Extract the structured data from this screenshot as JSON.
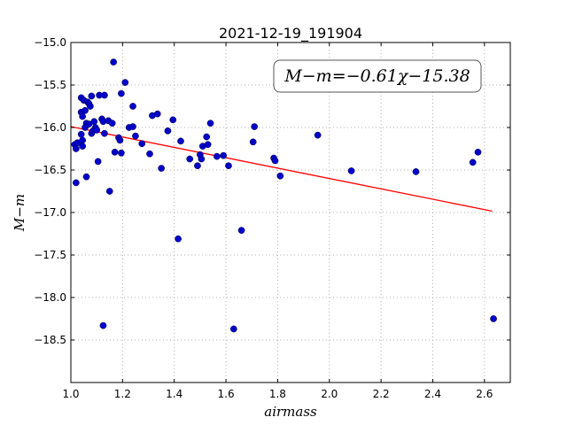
{
  "chart_data": {
    "type": "scatter",
    "title": "2021-12-19_191904",
    "xlabel": "airmass",
    "ylabel": "M−m",
    "xlim": [
      1.0,
      2.7
    ],
    "ylim": [
      -15.0,
      -19.0
    ],
    "y_inverted": true,
    "xticks": [
      "1.0",
      "1.2",
      "1.4",
      "1.6",
      "1.8",
      "2.0",
      "2.2",
      "2.4",
      "2.6"
    ],
    "yticks": [
      "−15.0",
      "−15.5",
      "−16.0",
      "−16.5",
      "−17.0",
      "−17.5",
      "−18.0",
      "−18.5"
    ],
    "grid": true,
    "annotation": "M−m=−0.61χ−15.38",
    "colors": {
      "points": "#0000cc",
      "fit_line": "#ff0000",
      "grid": "#b0b0b0"
    },
    "fit": {
      "slope": -0.61,
      "intercept": -15.38,
      "x_range": [
        1.0,
        2.63
      ]
    },
    "points": [
      [
        1.015,
        -16.2
      ],
      [
        1.02,
        -16.25
      ],
      [
        1.025,
        -16.18
      ],
      [
        1.02,
        -16.65
      ],
      [
        1.04,
        -15.65
      ],
      [
        1.04,
        -15.82
      ],
      [
        1.045,
        -15.87
      ],
      [
        1.04,
        -16.08
      ],
      [
        1.045,
        -16.15
      ],
      [
        1.045,
        -16.22
      ],
      [
        1.05,
        -15.68
      ],
      [
        1.055,
        -15.8
      ],
      [
        1.06,
        -15.95
      ],
      [
        1.055,
        -16.0
      ],
      [
        1.06,
        -16.58
      ],
      [
        1.065,
        -15.7
      ],
      [
        1.07,
        -15.72
      ],
      [
        1.075,
        -15.75
      ],
      [
        1.07,
        -15.96
      ],
      [
        1.08,
        -15.63
      ],
      [
        1.08,
        -16.07
      ],
      [
        1.085,
        -16.04
      ],
      [
        1.09,
        -15.93
      ],
      [
        1.095,
        -16.0
      ],
      [
        1.1,
        -16.03
      ],
      [
        1.105,
        -16.4
      ],
      [
        1.11,
        -15.62
      ],
      [
        1.12,
        -15.9
      ],
      [
        1.125,
        -15.93
      ],
      [
        1.13,
        -15.62
      ],
      [
        1.13,
        -16.07
      ],
      [
        1.125,
        -18.33
      ],
      [
        1.145,
        -15.92
      ],
      [
        1.15,
        -16.75
      ],
      [
        1.16,
        -15.95
      ],
      [
        1.165,
        -15.23
      ],
      [
        1.17,
        -16.29
      ],
      [
        1.185,
        -16.12
      ],
      [
        1.19,
        -16.15
      ],
      [
        1.195,
        -16.3
      ],
      [
        1.195,
        -15.6
      ],
      [
        1.21,
        -15.47
      ],
      [
        1.225,
        -16.0
      ],
      [
        1.24,
        -15.75
      ],
      [
        1.24,
        -15.99
      ],
      [
        1.25,
        -16.1
      ],
      [
        1.275,
        -16.19
      ],
      [
        1.305,
        -16.31
      ],
      [
        1.315,
        -15.86
      ],
      [
        1.335,
        -15.84
      ],
      [
        1.35,
        -16.48
      ],
      [
        1.375,
        -16.04
      ],
      [
        1.395,
        -15.91
      ],
      [
        1.415,
        -17.31
      ],
      [
        1.425,
        -16.16
      ],
      [
        1.46,
        -16.37
      ],
      [
        1.49,
        -16.45
      ],
      [
        1.5,
        -16.32
      ],
      [
        1.505,
        -16.37
      ],
      [
        1.51,
        -16.22
      ],
      [
        1.525,
        -16.11
      ],
      [
        1.53,
        -16.2
      ],
      [
        1.54,
        -15.95
      ],
      [
        1.565,
        -16.34
      ],
      [
        1.59,
        -16.33
      ],
      [
        1.61,
        -16.45
      ],
      [
        1.63,
        -18.37
      ],
      [
        1.66,
        -17.21
      ],
      [
        1.705,
        -16.17
      ],
      [
        1.71,
        -15.99
      ],
      [
        1.785,
        -16.36
      ],
      [
        1.79,
        -16.39
      ],
      [
        1.81,
        -16.57
      ],
      [
        1.955,
        -16.09
      ],
      [
        2.085,
        -16.51
      ],
      [
        2.335,
        -16.52
      ],
      [
        2.555,
        -16.41
      ],
      [
        2.575,
        -16.29
      ],
      [
        2.635,
        -18.25
      ]
    ]
  }
}
